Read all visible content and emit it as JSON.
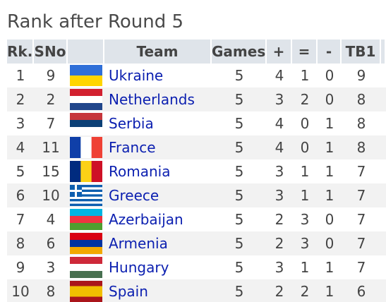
{
  "title": "Rank after Round 5",
  "table": {
    "header": [
      "Rk.",
      "SNo",
      "Team",
      "Games",
      "+",
      "=",
      "-",
      "TB1"
    ],
    "rows": [
      [
        1,
        9,
        "Ukraine",
        5,
        4,
        1,
        0,
        9
      ],
      [
        2,
        2,
        "Netherlands",
        5,
        3,
        2,
        0,
        8
      ],
      [
        3,
        7,
        "Serbia",
        5,
        4,
        0,
        1,
        8
      ],
      [
        4,
        11,
        "France",
        5,
        4,
        0,
        1,
        8
      ],
      [
        5,
        15,
        "Romania",
        5,
        3,
        1,
        1,
        7
      ],
      [
        6,
        10,
        "Greece",
        5,
        3,
        1,
        1,
        7
      ],
      [
        7,
        4,
        "Azerbaijan",
        5,
        2,
        3,
        0,
        7
      ],
      [
        8,
        6,
        "Armenia",
        5,
        2,
        3,
        0,
        7
      ],
      [
        9,
        3,
        "Hungary",
        5,
        3,
        1,
        1,
        7
      ],
      [
        10,
        8,
        "Spain",
        5,
        2,
        2,
        1,
        6
      ]
    ]
  }
}
